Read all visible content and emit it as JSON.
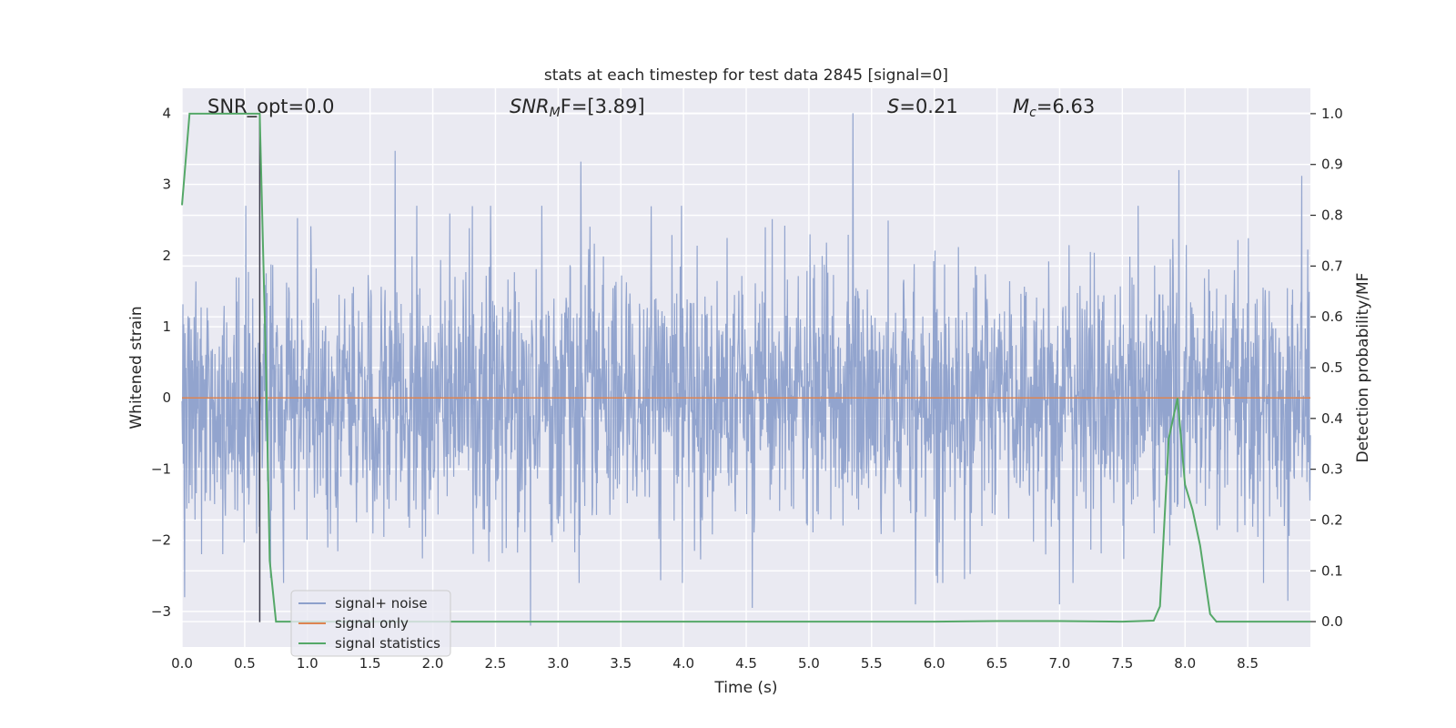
{
  "chart_data": {
    "type": "line",
    "title": "stats at each timestep for test data 2845 [signal=0]",
    "xlabel": "Time (s)",
    "ylabel_left": "Whitened strain",
    "ylabel_right": "Detection probability/MF",
    "xlim": [
      0,
      9.0
    ],
    "ylim_left": [
      -3.5,
      4.35
    ],
    "ylim_right": [
      -0.05,
      1.05
    ],
    "x_ticks": [
      0.0,
      0.5,
      1.0,
      1.5,
      2.0,
      2.5,
      3.0,
      3.5,
      4.0,
      4.5,
      5.0,
      5.5,
      6.0,
      6.5,
      7.0,
      7.5,
      8.0,
      8.5
    ],
    "x_tick_labels": [
      "0.0",
      "0.5",
      "1.0",
      "1.5",
      "2.0",
      "2.5",
      "3.0",
      "3.5",
      "4.0",
      "4.5",
      "5.0",
      "5.5",
      "6.0",
      "6.5",
      "7.0",
      "7.5",
      "8.0",
      "8.5"
    ],
    "y_left_ticks": [
      -3,
      -2,
      -1,
      0,
      1,
      2,
      3,
      4
    ],
    "y_left_tick_labels": [
      "−3",
      "−2",
      "−1",
      "0",
      "1",
      "2",
      "3",
      "4"
    ],
    "y_right_ticks": [
      0.0,
      0.1,
      0.2,
      0.3,
      0.4,
      0.5,
      0.6,
      0.7,
      0.8,
      0.9,
      1.0
    ],
    "y_right_tick_labels": [
      "0.0",
      "0.1",
      "0.2",
      "0.3",
      "0.4",
      "0.5",
      "0.6",
      "0.7",
      "0.8",
      "0.9",
      "1.0"
    ],
    "grid": true,
    "legend_position": "lower-left",
    "vertical_marker_x": 0.62,
    "series": [
      {
        "name": "signal+ noise",
        "axis": "left",
        "color": "#8da0cb",
        "description_values": "dense noise, typical envelope approx [-1.7, 1.8], peaks up to 4.0 near t=5.35 and down to -3.2 near t=2.78",
        "peaks": [
          {
            "x": 1.7,
            "y": 3.47
          },
          {
            "x": 3.18,
            "y": 3.32
          },
          {
            "x": 5.35,
            "y": 4.0
          },
          {
            "x": 7.95,
            "y": 3.2
          },
          {
            "x": 8.93,
            "y": 3.12
          },
          {
            "x": 0.02,
            "y": -2.8
          },
          {
            "x": 2.78,
            "y": -3.2
          },
          {
            "x": 4.55,
            "y": -2.95
          },
          {
            "x": 5.85,
            "y": -2.9
          },
          {
            "x": 7.0,
            "y": -2.9
          },
          {
            "x": 8.82,
            "y": -2.85
          }
        ]
      },
      {
        "name": "signal only",
        "axis": "left",
        "color": "#dd8452",
        "x": [
          0.0,
          9.0
        ],
        "y": [
          0.0,
          0.0
        ]
      },
      {
        "name": "signal statistics",
        "axis": "right",
        "color": "#55a868",
        "x": [
          0.0,
          0.06,
          0.12,
          0.2,
          0.3,
          0.4,
          0.5,
          0.55,
          0.62,
          0.67,
          0.7,
          0.75,
          0.8,
          1.0,
          2.0,
          3.0,
          4.0,
          5.0,
          6.0,
          6.5,
          7.0,
          7.5,
          7.75,
          7.8,
          7.87,
          7.94,
          8.0,
          8.06,
          8.12,
          8.2,
          8.25,
          8.3,
          9.0
        ],
        "y": [
          0.82,
          1.0,
          1.0,
          1.0,
          1.0,
          1.0,
          1.0,
          1.0,
          1.0,
          0.5,
          0.12,
          0.0,
          0.0,
          0.0,
          0.0,
          0.0,
          0.0,
          0.0,
          0.0,
          0.001,
          0.001,
          0.0,
          0.002,
          0.03,
          0.36,
          0.44,
          0.27,
          0.22,
          0.15,
          0.015,
          0.0,
          0.0,
          0.0
        ]
      }
    ],
    "annotations": {
      "snr_opt": "SNR_opt=0.0",
      "snr_mf_symbol": "SNR",
      "snr_mf_sub": "M",
      "snr_mf_rest": "F=[3.89]",
      "s_symbol": "S",
      "s_rest": "=0.21",
      "mc_symbol": "M",
      "mc_sub": "c",
      "mc_rest": "=6.63"
    }
  }
}
